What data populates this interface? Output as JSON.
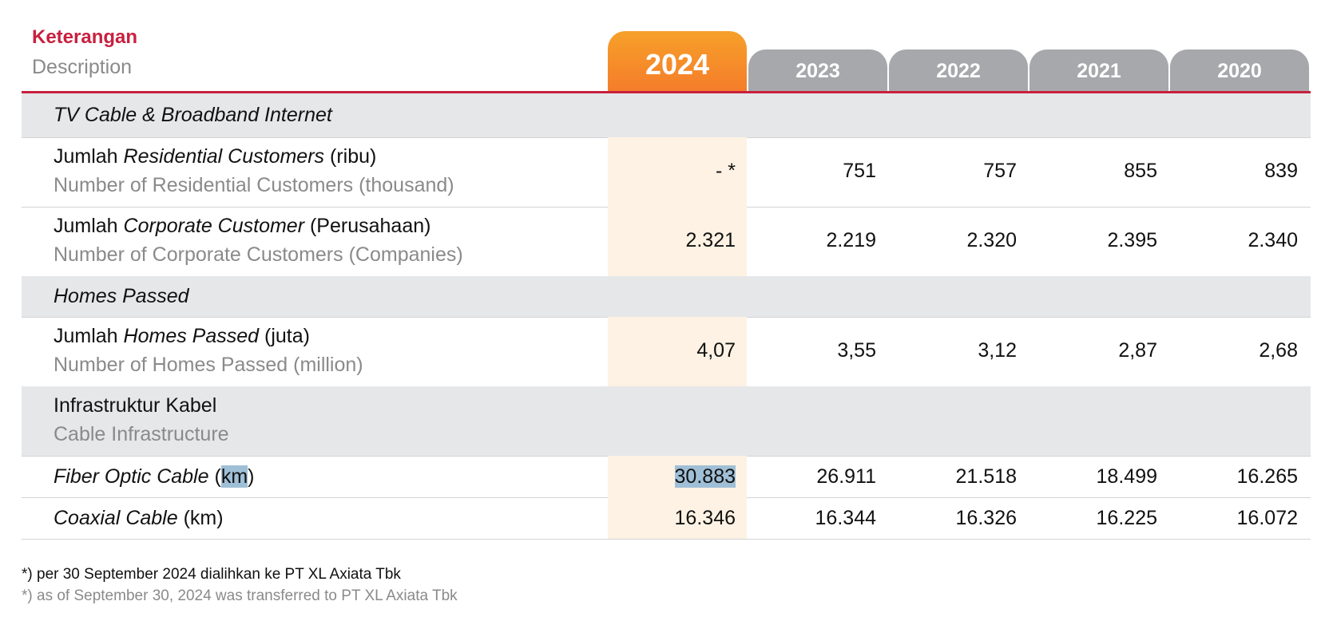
{
  "header": {
    "desc_id": "Keterangan",
    "desc_en": "Description",
    "years": [
      "2024",
      "2023",
      "2022",
      "2021",
      "2020"
    ]
  },
  "sections": {
    "tv": "TV Cable & Broadband Internet",
    "homes": "Homes Passed",
    "infra_id": "Infrastruktur Kabel",
    "infra_en": "Cable Infrastructure"
  },
  "rows": {
    "residential": {
      "id_pre": "Jumlah ",
      "id_italic": "Residential Customers",
      "id_post": " (ribu)",
      "en": "Number of Residential Customers (thousand)",
      "values": [
        "- *",
        "751",
        "757",
        "855",
        "839"
      ]
    },
    "corporate": {
      "id_pre": "Jumlah ",
      "id_italic": "Corporate Customer",
      "id_post": " (Perusahaan)",
      "en": "Number of Corporate Customers (Companies)",
      "values": [
        "2.321",
        "2.219",
        "2.320",
        "2.395",
        "2.340"
      ]
    },
    "homes": {
      "id_pre": "Jumlah ",
      "id_italic": "Homes Passed",
      "id_post": " (juta)",
      "en": "Number of Homes Passed (million)",
      "values": [
        "4,07",
        "3,55",
        "3,12",
        "2,87",
        "2,68"
      ]
    },
    "fiber": {
      "italic": "Fiber Optic Cable",
      "open": " (",
      "unit": "km",
      "close": ")",
      "values": [
        "30.883",
        "26.911",
        "21.518",
        "18.499",
        "16.265"
      ]
    },
    "coaxial": {
      "italic": "Coaxial Cable",
      "unit_full": " (km)",
      "values": [
        "16.346",
        "16.344",
        "16.326",
        "16.225",
        "16.072"
      ]
    }
  },
  "footnote": {
    "id": "*) per 30 September 2024 dialihkan ke PT XL Axiata Tbk",
    "en": "*) as of September 30, 2024 was transferred to PT XL Axiata Tbk"
  },
  "colors": {
    "accent_red": "#c8203f",
    "tab_gray": "#a7a8ab",
    "tab_orange": "#f57c2a",
    "highlight_col": "#fdf2e3",
    "section_bg": "#e6e7e9"
  }
}
